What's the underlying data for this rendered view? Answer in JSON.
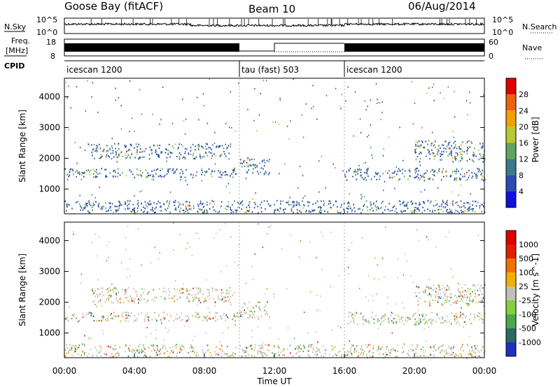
{
  "header": {
    "radar": "Goose Bay (fitACF)",
    "beam": "Beam 10",
    "date": "06/Aug/2014"
  },
  "top_panels": {
    "nsky_label": "N.Sky",
    "nsky_ticks": [
      "10^5",
      "10^0"
    ],
    "nsearch_label": "N.Search",
    "nsearch_ticks": [
      "10^5",
      "10^0"
    ],
    "freq_label": "Freq.",
    "freq_unit": "[MHz]",
    "freq_ticks": [
      "18",
      "8"
    ],
    "nave_label": "Nave",
    "nave_ticks": [
      "60",
      "0"
    ],
    "cpid_label": "CPID",
    "cpid_segments": [
      {
        "label": "icescan 1200",
        "start": 0,
        "end": 10
      },
      {
        "label": "tau (fast) 503",
        "start": 10,
        "end": 16
      },
      {
        "label": "icescan 1200",
        "start": 16,
        "end": 24
      }
    ]
  },
  "chart_data": [
    {
      "type": "heatmap",
      "name": "power",
      "ylabel": "Slant Range [km]",
      "ylim": [
        200,
        4600
      ],
      "y_ticks": [
        "1000",
        "2000",
        "3000",
        "4000"
      ],
      "colorbar_label": "Power [dB]",
      "colorbar_ticks": [
        "4",
        "8",
        "12",
        "16",
        "20",
        "24",
        "28"
      ],
      "colors": [
        "#1010e0",
        "#2a4bb0",
        "#3a7a8a",
        "#5fa55f",
        "#b8c830",
        "#f0a000",
        "#f06010",
        "#e00000"
      ],
      "scatter_bands": [
        {
          "t0": 0.0,
          "t1": 10.0,
          "r0": 1400,
          "r1": 1700
        },
        {
          "t0": 1.5,
          "t1": 9.5,
          "r0": 2000,
          "r1": 2500
        },
        {
          "t0": 10.0,
          "t1": 11.7,
          "r0": 1500,
          "r1": 2050
        },
        {
          "t0": 12.5,
          "t1": 13.7,
          "r0": 500,
          "r1": 650
        },
        {
          "t0": 16.0,
          "t1": 24.0,
          "r0": 1300,
          "r1": 1700
        },
        {
          "t0": 20.0,
          "t1": 24.0,
          "r0": 1900,
          "r1": 2600
        },
        {
          "t0": 0.0,
          "t1": 24.0,
          "r0": 250,
          "r1": 650
        }
      ]
    },
    {
      "type": "heatmap",
      "name": "velocity",
      "xlabel": "Time UT",
      "x_ticks": [
        "00:00",
        "04:00",
        "08:00",
        "12:00",
        "16:00",
        "20:00",
        "00:00"
      ],
      "ylabel": "Slant Range [km]",
      "ylim": [
        200,
        4600
      ],
      "y_ticks": [
        "1000",
        "2000",
        "3000",
        "4000"
      ],
      "colorbar_label": "Velocity [m s^-1]",
      "colorbar_ticks": [
        "1000",
        "500",
        "100",
        "25",
        "-25",
        "-100",
        "-500",
        "-1000"
      ],
      "colors": [
        "#2030c0",
        "#2a6a60",
        "#4aa84a",
        "#80d040",
        "#c0c0b8",
        "#f0b000",
        "#f07000",
        "#e02000",
        "#e00000"
      ],
      "scatter_bands": [
        {
          "t0": 0.0,
          "t1": 10.0,
          "r0": 1400,
          "r1": 1700
        },
        {
          "t0": 1.5,
          "t1": 9.5,
          "r0": 2000,
          "r1": 2500
        },
        {
          "t0": 10.0,
          "t1": 11.7,
          "r0": 1500,
          "r1": 2050
        },
        {
          "t0": 12.5,
          "t1": 13.7,
          "r0": 500,
          "r1": 650
        },
        {
          "t0": 16.0,
          "t1": 24.0,
          "r0": 1300,
          "r1": 1700
        },
        {
          "t0": 20.0,
          "t1": 24.0,
          "r0": 1900,
          "r1": 2600
        },
        {
          "t0": 0.0,
          "t1": 24.0,
          "r0": 250,
          "r1": 650
        }
      ]
    }
  ]
}
